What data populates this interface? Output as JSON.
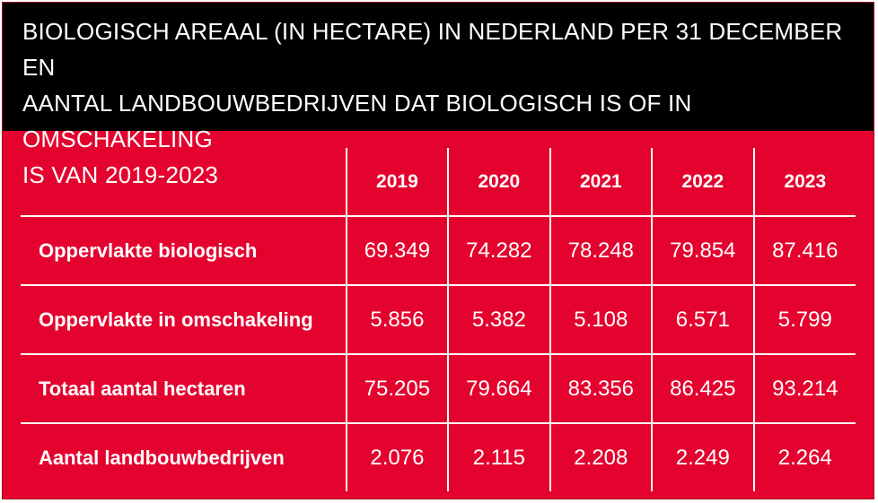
{
  "title": "BIOLOGISCH AREAAL (IN HECTARE) IN NEDERLAND PER 31 DECEMBER EN\nAANTAL LANDBOUWBEDRIJVEN DAT BIOLOGISCH IS OF IN OMSCHAKELING\nIS VAN 2019-2023",
  "colors": {
    "header_background": "#000000",
    "table_background": "#e4022e",
    "text": "#ffffff"
  },
  "table": {
    "headers": [
      "",
      "2019",
      "2020",
      "2021",
      "2022",
      "2023"
    ],
    "rows": [
      {
        "label": "Oppervlakte biologisch",
        "values": [
          "69.349",
          "74.282",
          "78.248",
          "79.854",
          "87.416"
        ]
      },
      {
        "label": "Oppervlakte in omschakeling",
        "values": [
          "5.856",
          "5.382",
          "5.108",
          "6.571",
          "5.799"
        ]
      },
      {
        "label": "Totaal aantal hectaren",
        "values": [
          "75.205",
          "79.664",
          "83.356",
          "86.425",
          "93.214"
        ]
      },
      {
        "label": "Aantal landbouwbedrijven",
        "values": [
          "2.076",
          "2.115",
          "2.208",
          "2.249",
          "2.264"
        ]
      }
    ]
  }
}
